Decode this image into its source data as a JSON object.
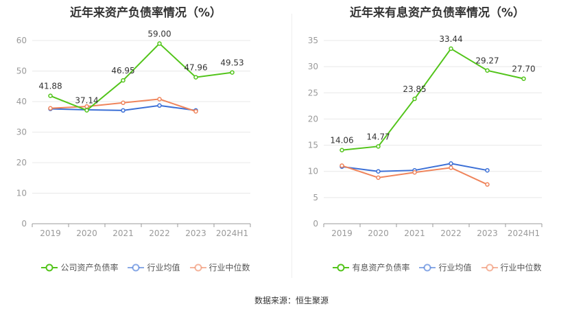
{
  "colors": {
    "company": "#52c41a",
    "avg": "#3b6fd6",
    "median": "#ef845b",
    "grid": "#e8e8e8",
    "axis": "#999999",
    "label": "#333333"
  },
  "source": "数据来源：恒生聚源",
  "chart_data": [
    {
      "type": "line",
      "title": "近年来资产负债率情况（%）",
      "categories": [
        "2019",
        "2020",
        "2021",
        "2022",
        "2023",
        "2024H1"
      ],
      "ylim": [
        0,
        60
      ],
      "yticks": [
        0,
        10,
        20,
        30,
        40,
        50,
        60
      ],
      "grid": true,
      "legend": "bottom",
      "series": [
        {
          "name": "公司资产负债率",
          "key": "company",
          "values": [
            41.88,
            37.14,
            46.95,
            59.0,
            47.96,
            49.53
          ],
          "labels": [
            "41.88",
            "37.14",
            "46.95",
            "59.00",
            "47.96",
            "49.53"
          ]
        },
        {
          "name": "行业均值",
          "key": "avg",
          "values": [
            37.6,
            37.3,
            37.1,
            38.7,
            37.1,
            null
          ]
        },
        {
          "name": "行业中位数",
          "key": "median",
          "values": [
            37.8,
            38.4,
            39.6,
            40.8,
            36.8,
            null
          ]
        }
      ]
    },
    {
      "type": "line",
      "title": "近年来有息资产负债率情况（%）",
      "categories": [
        "2019",
        "2020",
        "2021",
        "2022",
        "2023",
        "2024H1"
      ],
      "ylim": [
        0,
        35
      ],
      "yticks": [
        0,
        5,
        10,
        15,
        20,
        25,
        30,
        35
      ],
      "grid": true,
      "legend": "bottom",
      "series": [
        {
          "name": "有息资产负债率",
          "key": "company",
          "values": [
            14.06,
            14.77,
            23.85,
            33.44,
            29.27,
            27.7
          ],
          "labels": [
            "14.06",
            "14.77",
            "23.85",
            "33.44",
            "29.27",
            "27.70"
          ]
        },
        {
          "name": "行业均值",
          "key": "avg",
          "values": [
            10.9,
            10.0,
            10.2,
            11.5,
            10.2,
            null
          ]
        },
        {
          "name": "行业中位数",
          "key": "median",
          "values": [
            11.1,
            8.8,
            9.8,
            10.7,
            7.5,
            null
          ]
        }
      ]
    }
  ]
}
